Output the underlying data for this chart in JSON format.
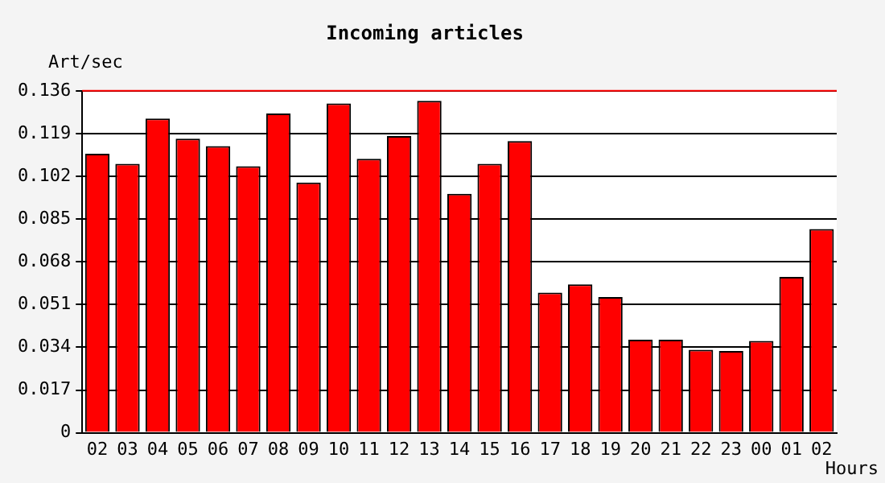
{
  "chart_data": {
    "type": "bar",
    "title": "Incoming articles",
    "xlabel": "Hours",
    "ylabel": "Art/sec",
    "categories": [
      "02",
      "03",
      "04",
      "05",
      "06",
      "07",
      "08",
      "09",
      "10",
      "11",
      "12",
      "13",
      "14",
      "15",
      "16",
      "17",
      "18",
      "19",
      "20",
      "21",
      "22",
      "23",
      "00",
      "01",
      "02"
    ],
    "series": [
      {
        "color": "#ff0000",
        "values": [
          0.111,
          0.107,
          0.125,
          0.117,
          0.114,
          0.106,
          0.127,
          0.0995,
          0.131,
          0.109,
          0.118,
          0.132,
          0.095,
          0.107,
          0.116,
          0.0557,
          0.059,
          0.054,
          0.037,
          0.037,
          0.033,
          0.0325,
          0.0365,
          0.062,
          0.081
        ]
      }
    ],
    "ylim": [
      0,
      0.136
    ],
    "yticks": [
      0,
      0.017,
      0.034,
      0.051,
      0.068,
      0.085,
      0.102,
      0.119,
      0.136
    ],
    "grid": "y",
    "legend": false,
    "ref_lines": [
      {
        "axis": "y",
        "value": 0.136,
        "color": "#ff0000"
      }
    ]
  }
}
